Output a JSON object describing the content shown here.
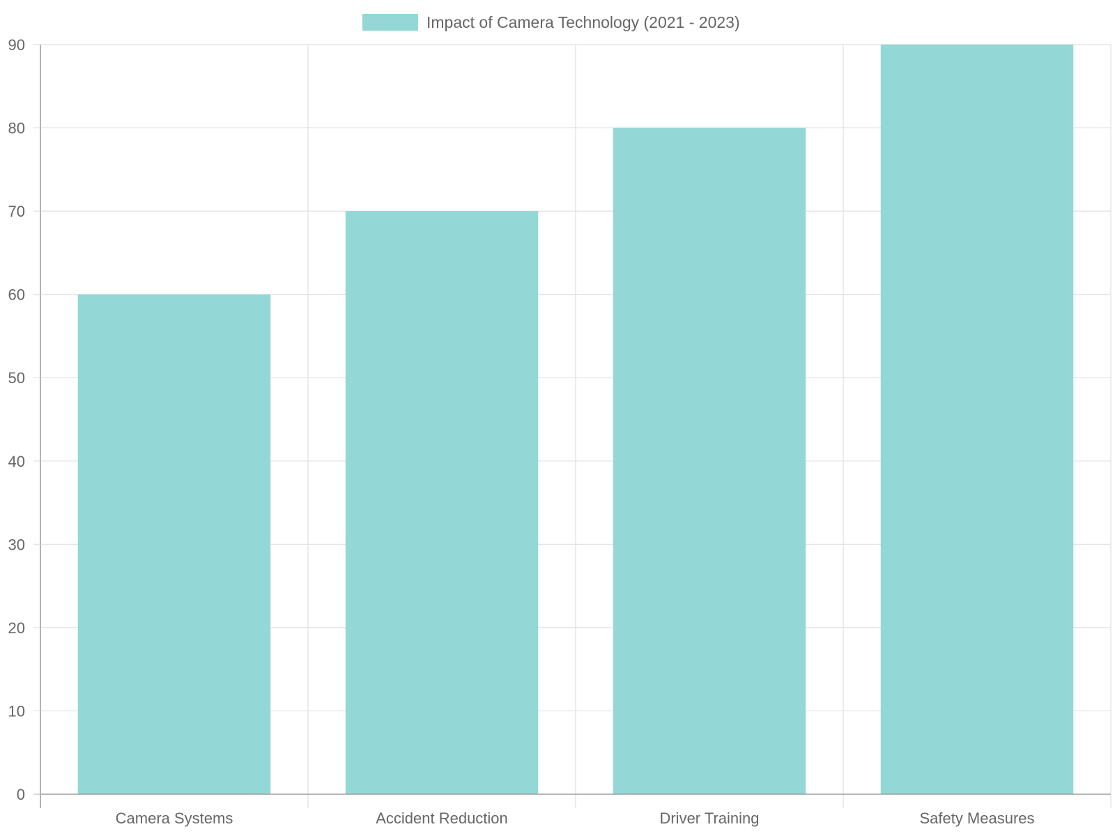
{
  "chart_data": {
    "type": "bar",
    "categories": [
      "Camera Systems",
      "Accident Reduction",
      "Driver Training",
      "Safety Measures"
    ],
    "series": [
      {
        "name": "Impact of Camera Technology (2021 - 2023)",
        "values": [
          60,
          70,
          80,
          90
        ],
        "color": "#93d8d6"
      }
    ],
    "ylim": [
      0,
      90
    ],
    "yticks": [
      0,
      10,
      20,
      30,
      40,
      50,
      60,
      70,
      80,
      90
    ],
    "grid": true,
    "legend_position": "top-center",
    "title": "",
    "xlabel": "",
    "ylabel": ""
  },
  "colors": {
    "grid": "#e0e0e0",
    "axis": "#9e9e9e",
    "text": "#666666"
  }
}
